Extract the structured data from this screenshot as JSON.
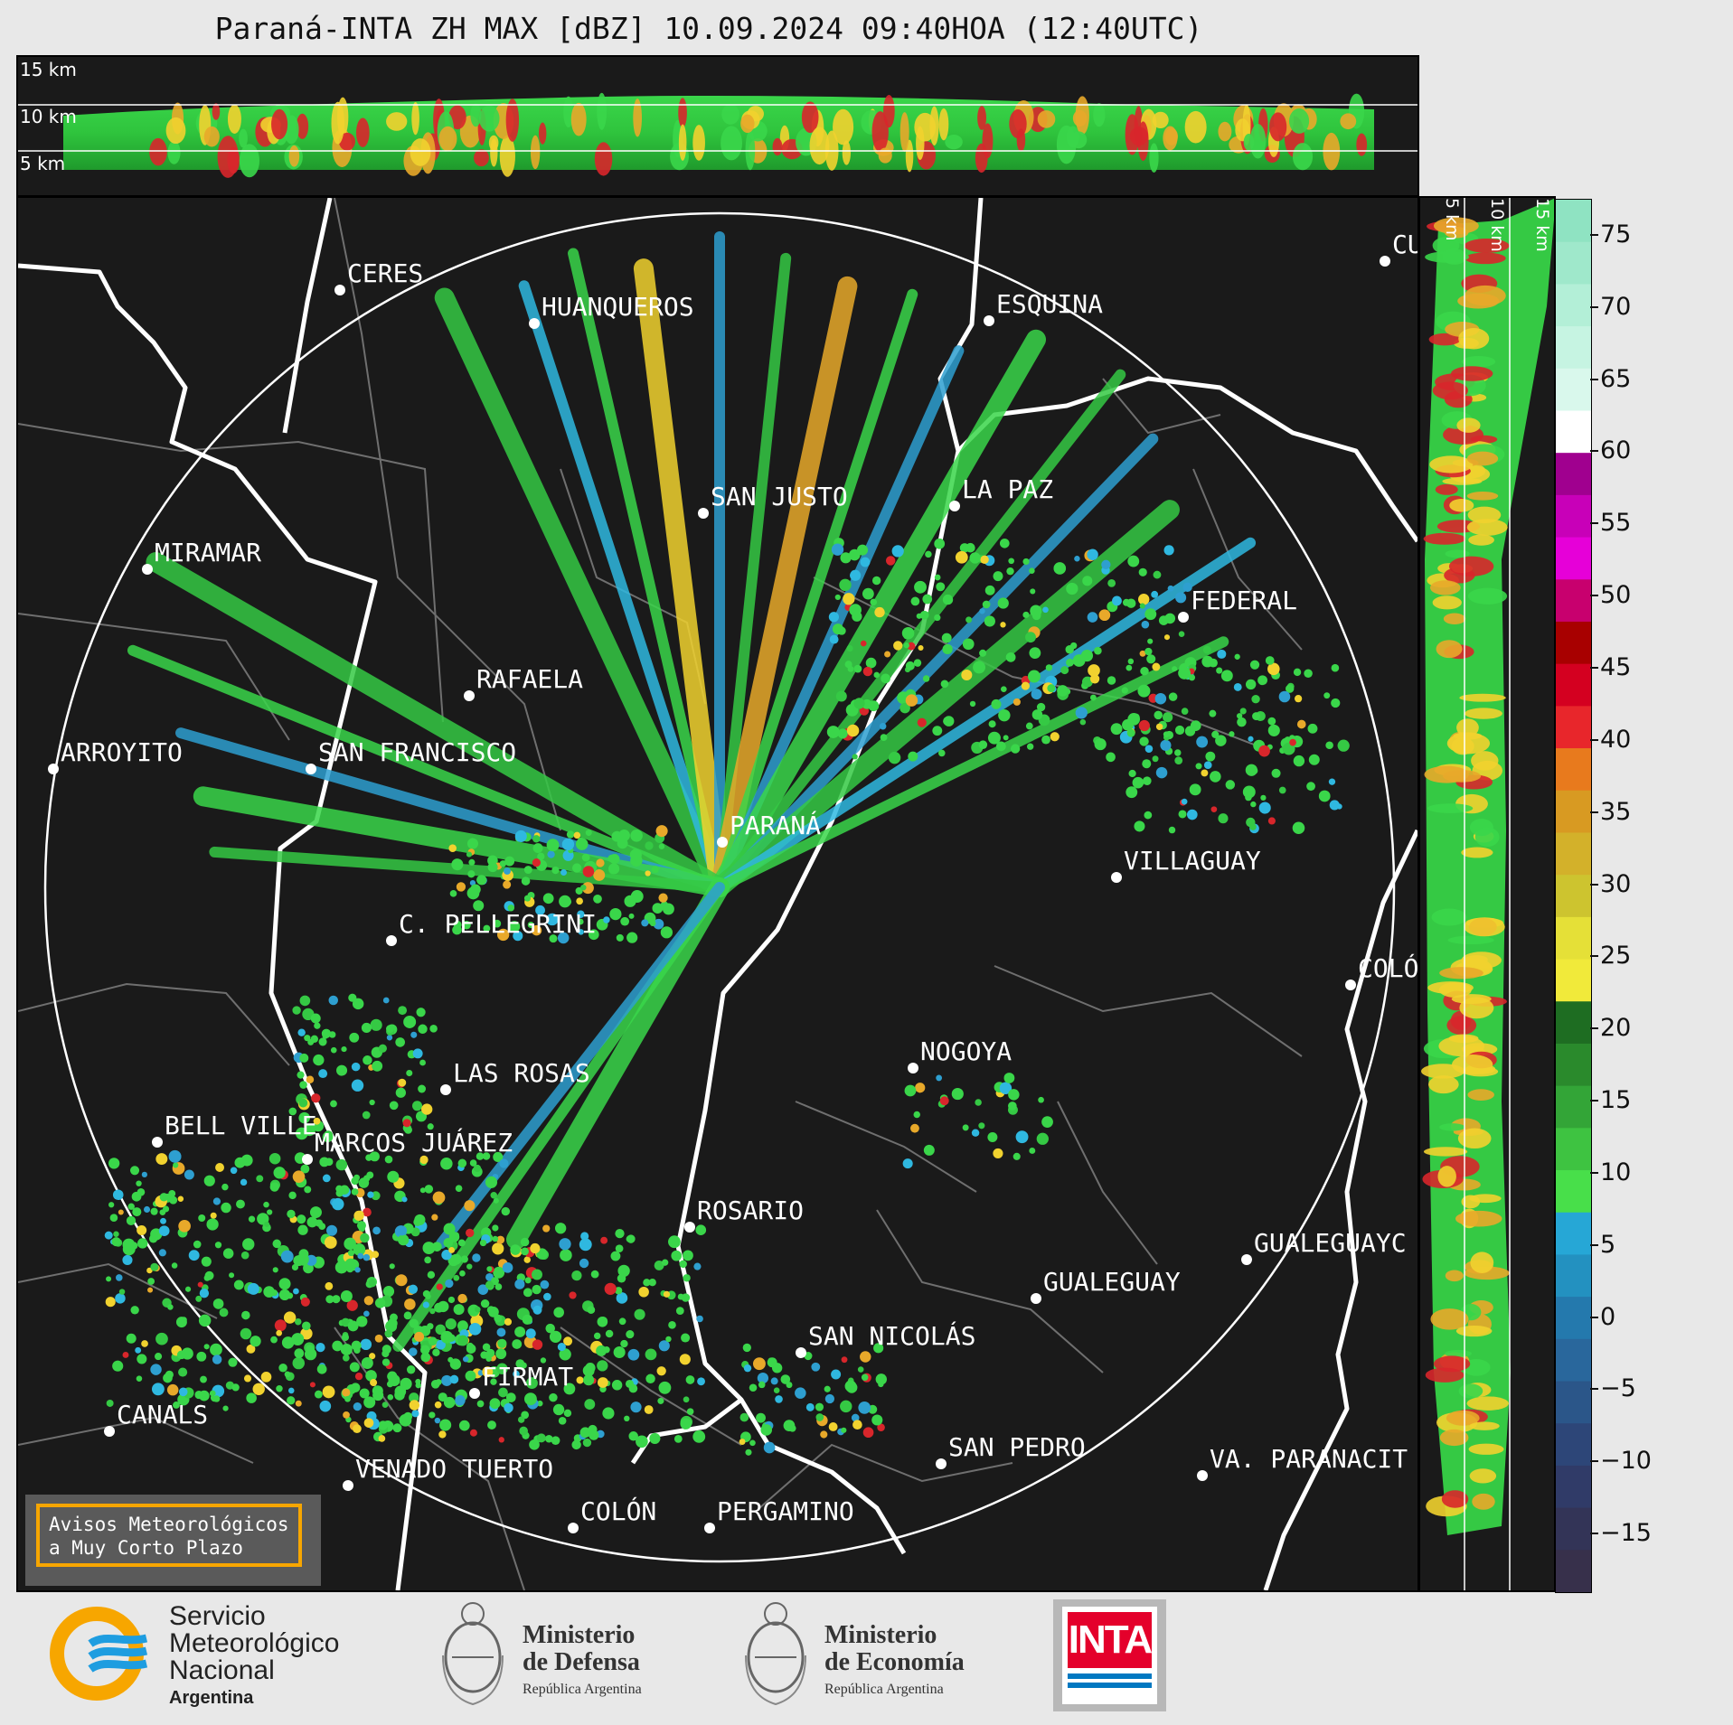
{
  "title": "Paraná-INTA ZH MAX [dBZ] 10.09.2024 09:40HOA (12:40UTC)",
  "top_panel": {
    "height_labels": [
      "15 km",
      "10 km",
      "5 km"
    ]
  },
  "side_panel": {
    "height_labels": [
      "5 km",
      "10 km",
      "15 km"
    ]
  },
  "colorbar": {
    "ticks": [
      "75",
      "70",
      "65",
      "60",
      "55",
      "50",
      "45",
      "40",
      "35",
      "30",
      "25",
      "20",
      "15",
      "10",
      "5",
      "0",
      "−5",
      "−10",
      "−15"
    ]
  },
  "map": {
    "cities": [
      {
        "name": "CERES"
      },
      {
        "name": "HUANQUEROS"
      },
      {
        "name": "ESQUINA"
      },
      {
        "name": "CU"
      },
      {
        "name": "SAN JUSTO"
      },
      {
        "name": "LA PAZ"
      },
      {
        "name": "MIRAMAR"
      },
      {
        "name": "FEDERAL"
      },
      {
        "name": "RAFAELA"
      },
      {
        "name": "ARROYITO"
      },
      {
        "name": "SAN FRANCISCO"
      },
      {
        "name": "PARANÁ"
      },
      {
        "name": "VILLAGUAY"
      },
      {
        "name": "C. PELLEGRINI"
      },
      {
        "name": "COLÓ"
      },
      {
        "name": "NOGOYA"
      },
      {
        "name": "LAS ROSAS"
      },
      {
        "name": "BELL VILLE"
      },
      {
        "name": "MARCOS JUÁREZ"
      },
      {
        "name": "ROSARIO"
      },
      {
        "name": "GUALEGUAYC"
      },
      {
        "name": "GUALEGUAY"
      },
      {
        "name": "SAN NICOLÁS"
      },
      {
        "name": "FIRMAT"
      },
      {
        "name": "CANALS"
      },
      {
        "name": "SAN PEDRO"
      },
      {
        "name": "VA. PARANACIT"
      },
      {
        "name": "VENADO TUERTO"
      },
      {
        "name": "COLÓN"
      },
      {
        "name": "PERGAMINO"
      }
    ],
    "notice": [
      "Avisos Meteorológicos",
      "a Muy Corto Plazo"
    ]
  },
  "footer": {
    "smn": [
      "Servicio",
      "Meteorológico",
      "Nacional",
      "Argentina"
    ],
    "defensa": [
      "Ministerio",
      "de Defensa",
      "República Argentina"
    ],
    "economia": [
      "Ministerio",
      "de Economía",
      "República Argentina"
    ],
    "inta": "INTA"
  }
}
